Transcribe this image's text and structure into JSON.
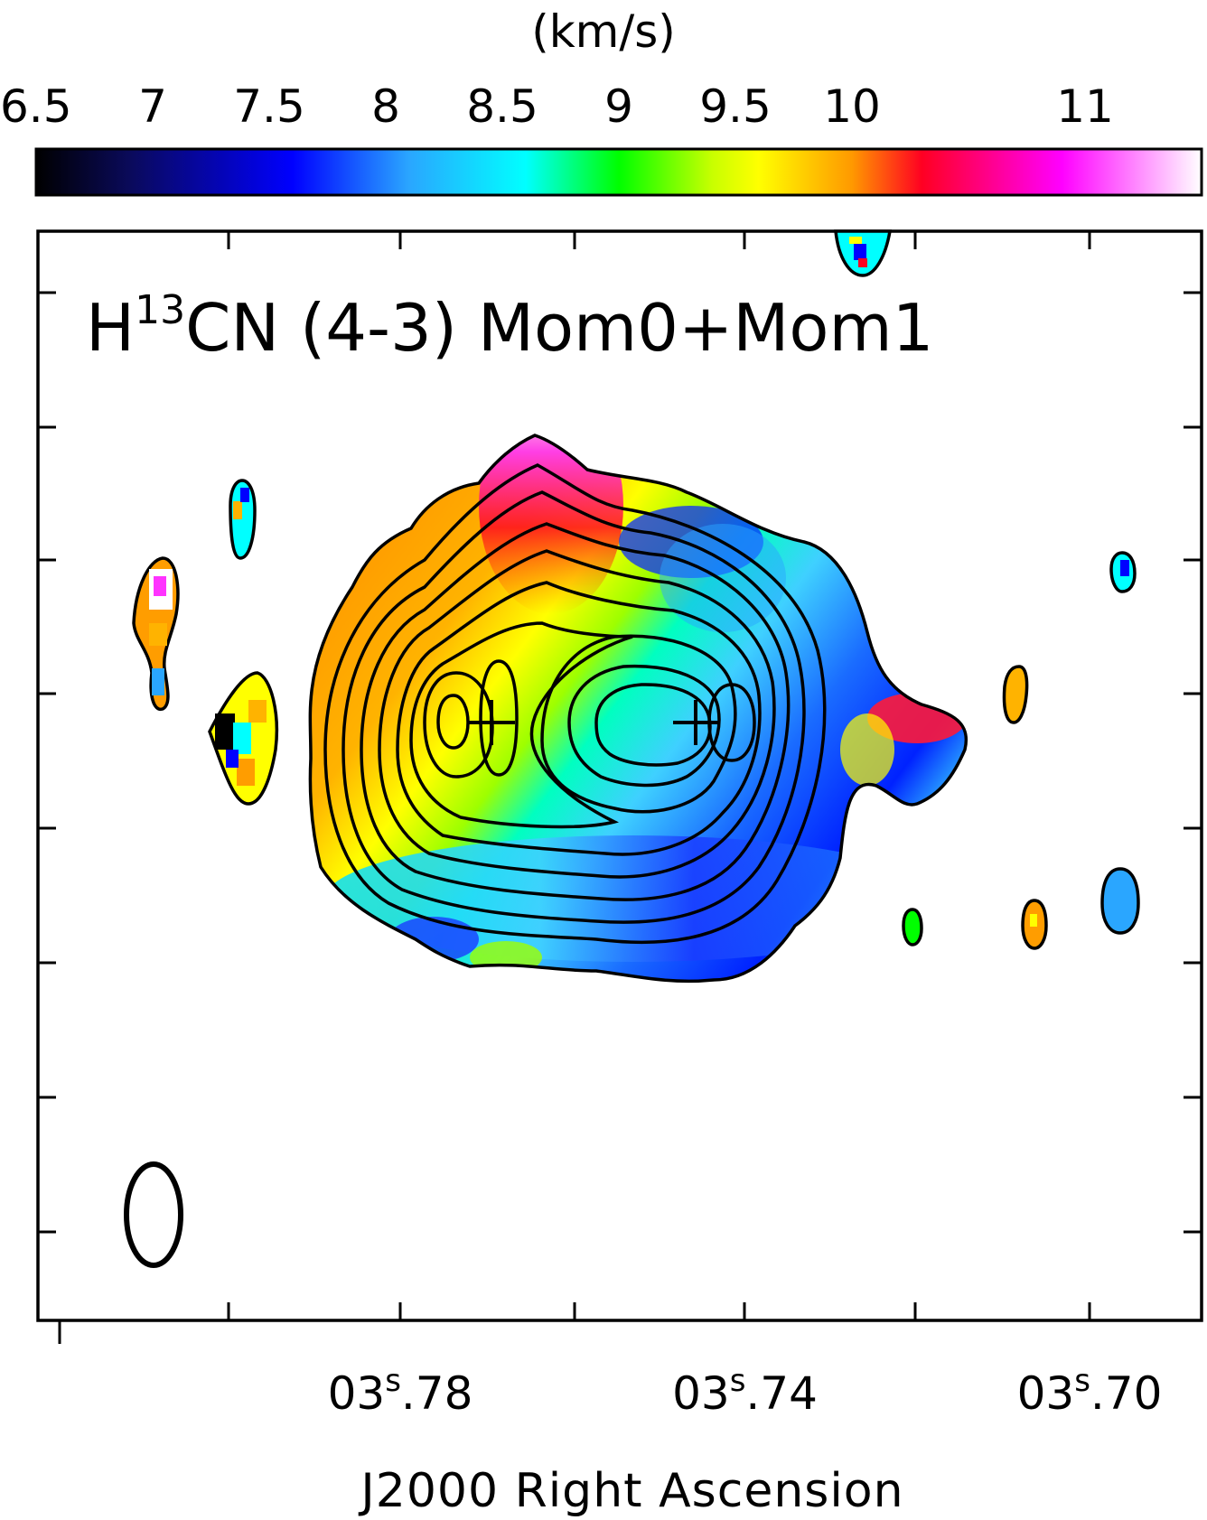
{
  "chart_data": {
    "type": "heatmap",
    "title_main": "H",
    "title_sup": "13",
    "title_rest": "CN (4-3) Mom0+Mom1",
    "colorbar": {
      "unit_label": "(km/s)",
      "ticks": [
        "6.5",
        "7",
        "7.5",
        "8",
        "8.5",
        "9",
        "9.5",
        "10",
        "11"
      ],
      "tick_values": [
        6.5,
        7,
        7.5,
        8,
        8.5,
        9,
        9.5,
        10,
        11
      ],
      "range": [
        6.5,
        11.5
      ],
      "colormap": [
        {
          "v": 6.5,
          "color": "#000000"
        },
        {
          "v": 6.9,
          "color": "#0a0a5a"
        },
        {
          "v": 7.6,
          "color": "#0000ff"
        },
        {
          "v": 8.1,
          "color": "#2aa6ff"
        },
        {
          "v": 8.6,
          "color": "#00ffff"
        },
        {
          "v": 9.0,
          "color": "#00ff00"
        },
        {
          "v": 9.4,
          "color": "#c8ff00"
        },
        {
          "v": 9.6,
          "color": "#ffff00"
        },
        {
          "v": 10.0,
          "color": "#ff9900"
        },
        {
          "v": 10.3,
          "color": "#ff0022"
        },
        {
          "v": 10.9,
          "color": "#ff00ff"
        },
        {
          "v": 11.5,
          "color": "#ffffff"
        }
      ]
    },
    "x_axis": {
      "label": "J2000 Right Ascension",
      "tick_labels": [
        {
          "main": "03",
          "sup": "s",
          "frac": ".78",
          "value": 3.78
        },
        {
          "main": "03",
          "sup": "s",
          "frac": ".74",
          "value": 3.74
        },
        {
          "main": "03",
          "sup": "s",
          "frac": ".70",
          "value": 3.7
        }
      ]
    },
    "grid": false,
    "legend": "none",
    "markers": [
      {
        "name": "source-west",
        "symbol": "plus"
      },
      {
        "name": "source-east",
        "symbol": "plus"
      }
    ],
    "beam": {
      "shape": "ellipse",
      "position": "bottom-left"
    }
  }
}
